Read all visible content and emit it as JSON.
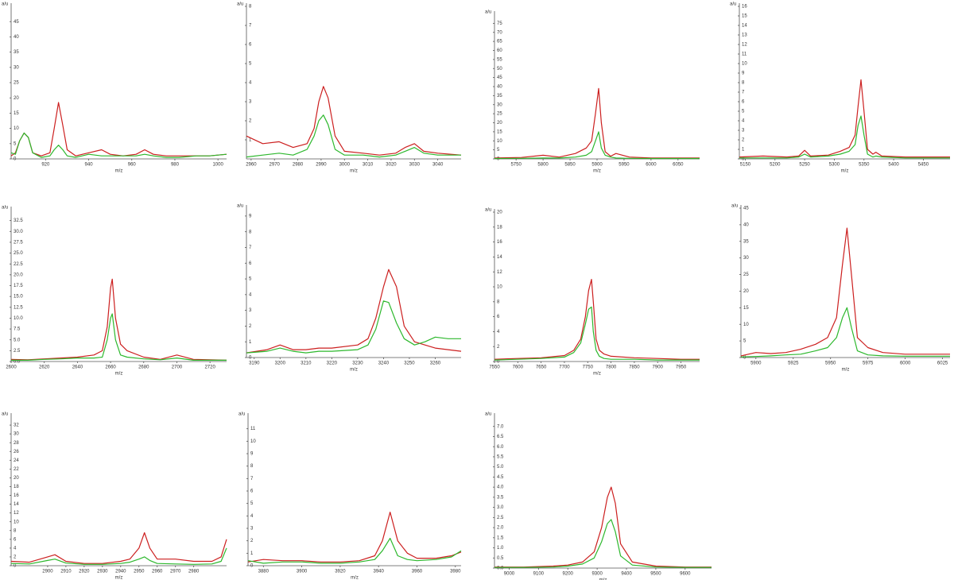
{
  "chart_data": [
    {
      "type": "line",
      "ylabel": "a/u",
      "xlabel": "m/z",
      "xlim": [
        904,
        1004
      ],
      "xticks": [
        920,
        940,
        960,
        980,
        1000
      ],
      "ylim": [
        0,
        50
      ],
      "yticks": [
        0,
        5,
        10,
        15,
        20,
        25,
        30,
        35,
        40,
        45
      ],
      "x": [
        904,
        906,
        908,
        910,
        912,
        914,
        918,
        922,
        924,
        926,
        928,
        930,
        934,
        940,
        946,
        950,
        956,
        962,
        966,
        970,
        976,
        982,
        990,
        996,
        1004
      ],
      "series": [
        {
          "color": "#cc1f1f",
          "values": [
            1,
            2,
            6,
            8.5,
            7,
            2,
            1,
            2,
            10,
            18.5,
            11,
            3,
            1,
            2,
            3,
            1.5,
            1,
            1.5,
            3,
            1.5,
            1,
            1,
            1,
            1,
            1.5
          ]
        },
        {
          "color": "#2db82d",
          "values": [
            2,
            1.5,
            6,
            8.5,
            7,
            2,
            0.5,
            1,
            3,
            4.5,
            3,
            1,
            0.5,
            1.5,
            1,
            1,
            1,
            1,
            1.5,
            1,
            0.5,
            0.5,
            1,
            1,
            1.5
          ]
        }
      ]
    },
    {
      "type": "line",
      "ylabel": "a/u",
      "xlabel": "m/z",
      "xlim": [
        2958,
        3050
      ],
      "xticks": [
        2960,
        2970,
        2980,
        2990,
        3000,
        3010,
        3020,
        3030,
        3040
      ],
      "ylim": [
        0,
        8
      ],
      "yticks": [
        1,
        2,
        3,
        4,
        5,
        6,
        7,
        8
      ],
      "x": [
        2958,
        2965,
        2972,
        2978,
        2984,
        2987,
        2989,
        2991,
        2993,
        2996,
        3000,
        3008,
        3015,
        3022,
        3026,
        3030,
        3034,
        3040,
        3050
      ],
      "series": [
        {
          "color": "#cc1f1f",
          "values": [
            1.2,
            0.8,
            0.9,
            0.6,
            0.8,
            1.6,
            3.0,
            3.8,
            3.2,
            1.2,
            0.4,
            0.3,
            0.2,
            0.3,
            0.6,
            0.8,
            0.4,
            0.3,
            0.2
          ]
        },
        {
          "color": "#2db82d",
          "values": [
            0.1,
            0.2,
            0.3,
            0.2,
            0.5,
            1.2,
            2.0,
            2.3,
            1.8,
            0.5,
            0.2,
            0.2,
            0.1,
            0.2,
            0.4,
            0.6,
            0.3,
            0.2,
            0.2
          ]
        }
      ]
    },
    {
      "type": "line",
      "ylabel": "a/u",
      "xlabel": "m/z",
      "xlim": [
        5710,
        6090
      ],
      "xticks": [
        5750,
        5800,
        5850,
        5900,
        5950,
        6000,
        6050
      ],
      "ylim": [
        0,
        80
      ],
      "yticks": [
        0,
        5,
        10,
        15,
        20,
        25,
        30,
        35,
        40,
        45,
        50,
        55,
        60,
        65,
        70,
        75
      ],
      "x": [
        5710,
        5760,
        5800,
        5830,
        5860,
        5880,
        5890,
        5897,
        5903,
        5908,
        5915,
        5925,
        5935,
        5960,
        6000,
        6050,
        6090
      ],
      "series": [
        {
          "color": "#cc1f1f",
          "values": [
            0.5,
            0.8,
            2,
            1,
            3,
            6,
            10,
            25,
            39,
            20,
            4,
            1.5,
            3,
            1,
            0.5,
            0.5,
            0.5
          ]
        },
        {
          "color": "#2db82d",
          "values": [
            0.2,
            0.3,
            0.5,
            0.5,
            1,
            2,
            4,
            10,
            15,
            6,
            2,
            1,
            0.5,
            0.3,
            0.2,
            0.2,
            0.2
          ]
        }
      ]
    },
    {
      "type": "line",
      "ylabel": "a/u",
      "xlabel": "m/z",
      "xlim": [
        5140,
        5495
      ],
      "xticks": [
        5150,
        5200,
        5250,
        5300,
        5350,
        5400,
        5450
      ],
      "ylim": [
        0,
        16
      ],
      "yticks": [
        0,
        1,
        2,
        3,
        4,
        5,
        6,
        7,
        8,
        9,
        10,
        11,
        12,
        13,
        14,
        15,
        16
      ],
      "x": [
        5140,
        5180,
        5220,
        5240,
        5250,
        5260,
        5290,
        5310,
        5325,
        5335,
        5340,
        5345,
        5350,
        5356,
        5365,
        5370,
        5380,
        5420,
        5460,
        5495
      ],
      "series": [
        {
          "color": "#cc1f1f",
          "values": [
            0.2,
            0.3,
            0.2,
            0.3,
            0.9,
            0.3,
            0.4,
            0.8,
            1.2,
            2.5,
            5.5,
            8.3,
            5,
            1,
            0.5,
            0.7,
            0.3,
            0.2,
            0.2,
            0.2
          ]
        },
        {
          "color": "#2db82d",
          "values": [
            0.1,
            0.1,
            0.1,
            0.2,
            0.5,
            0.2,
            0.3,
            0.5,
            0.8,
            1.5,
            3.5,
            4.5,
            2.5,
            0.5,
            0.2,
            0.3,
            0.2,
            0.1,
            0.1,
            0.1
          ]
        }
      ]
    },
    {
      "type": "line",
      "ylabel": "a/u",
      "xlabel": "m/z",
      "xlim": [
        2600,
        2730
      ],
      "xticks": [
        2600,
        2620,
        2640,
        2660,
        2680,
        2700,
        2720
      ],
      "ylim": [
        0,
        35
      ],
      "yticks": [
        {
          "value": 0,
          "label": "0.0"
        },
        2.5,
        {
          "value": 5,
          "label": "5.0"
        },
        7.5,
        {
          "value": 10,
          "label": "10.0"
        },
        12.5,
        {
          "value": 15,
          "label": "15.0"
        },
        17.5,
        {
          "value": 20,
          "label": "20.0"
        },
        22.5,
        {
          "value": 25,
          "label": "25.0"
        },
        27.5,
        {
          "value": 30,
          "label": "30.0"
        },
        32.5
      ],
      "x": [
        2600,
        2610,
        2620,
        2630,
        2640,
        2650,
        2655,
        2658,
        2660,
        2661,
        2663,
        2666,
        2670,
        2680,
        2690,
        2700,
        2710,
        2720,
        2730
      ],
      "series": [
        {
          "color": "#cc1f1f",
          "values": [
            0.5,
            0.4,
            0.6,
            0.8,
            1,
            1.5,
            2.5,
            8,
            17,
            19,
            10,
            4,
            2.5,
            1,
            0.5,
            1.5,
            0.5,
            0.4,
            0.3
          ]
        },
        {
          "color": "#2db82d",
          "values": [
            0.3,
            0.3,
            0.5,
            0.6,
            0.8,
            0.8,
            1,
            5,
            10,
            11,
            5,
            1.5,
            1,
            0.6,
            0.4,
            0.8,
            0.3,
            0.3,
            0.3
          ]
        }
      ]
    },
    {
      "type": "line",
      "ylabel": "a/u",
      "xlabel": "m/z",
      "xlim": [
        3187,
        3270
      ],
      "xticks": [
        3190,
        3200,
        3210,
        3220,
        3230,
        3240,
        3250,
        3260
      ],
      "ylim": [
        0,
        9.5
      ],
      "yticks": [
        0,
        1,
        2,
        3,
        4,
        5,
        6,
        7,
        8,
        9
      ],
      "x": [
        3187,
        3195,
        3200,
        3205,
        3210,
        3215,
        3220,
        3230,
        3234,
        3237,
        3240,
        3242,
        3245,
        3248,
        3252,
        3256,
        3260,
        3265,
        3270
      ],
      "series": [
        {
          "color": "#cc1f1f",
          "values": [
            0.3,
            0.5,
            0.8,
            0.5,
            0.5,
            0.6,
            0.6,
            0.8,
            1.2,
            2.5,
            4.5,
            5.6,
            4.5,
            2,
            1,
            0.8,
            0.6,
            0.5,
            0.4
          ]
        },
        {
          "color": "#2db82d",
          "values": [
            0.3,
            0.4,
            0.6,
            0.4,
            0.3,
            0.4,
            0.4,
            0.5,
            0.8,
            1.8,
            3.6,
            3.5,
            2.2,
            1.2,
            0.8,
            1,
            1.3,
            1.2,
            1.2
          ]
        }
      ]
    },
    {
      "type": "line",
      "ylabel": "a/u",
      "xlabel": "m/z",
      "xlim": [
        7550,
        7990
      ],
      "xticks": [
        7550,
        7600,
        7650,
        7700,
        7750,
        7800,
        7850,
        7900,
        7950
      ],
      "ylim": [
        0,
        20
      ],
      "yticks": [
        0,
        2,
        4,
        6,
        8,
        10,
        12,
        14,
        16,
        18,
        20
      ],
      "x": [
        7550,
        7600,
        7650,
        7700,
        7720,
        7735,
        7745,
        7752,
        7758,
        7762,
        7768,
        7775,
        7785,
        7800,
        7850,
        7900,
        7950,
        7990
      ],
      "series": [
        {
          "color": "#cc1f1f",
          "values": [
            0.3,
            0.4,
            0.5,
            0.8,
            1.5,
            3,
            6,
            9.5,
            11,
            8,
            3,
            1.5,
            1,
            0.7,
            0.5,
            0.4,
            0.3,
            0.3
          ]
        },
        {
          "color": "#2db82d",
          "values": [
            0.2,
            0.3,
            0.4,
            0.6,
            1.2,
            2.5,
            5,
            7,
            7.3,
            4,
            1.5,
            0.7,
            0.4,
            0.3,
            0.3,
            0.2,
            0.2,
            0.2
          ]
        }
      ]
    },
    {
      "type": "line",
      "ylabel": "a/u",
      "xlabel": "m/z",
      "xlim": [
        5890,
        6030
      ],
      "xticks": [
        5900,
        5925,
        5950,
        5975,
        6000,
        6025
      ],
      "ylim": [
        0,
        45
      ],
      "yticks": [
        0,
        5,
        10,
        15,
        20,
        25,
        30,
        35,
        40,
        45
      ],
      "x": [
        5890,
        5900,
        5910,
        5920,
        5930,
        5940,
        5948,
        5954,
        5958,
        5961,
        5964,
        5968,
        5975,
        5985,
        6000,
        6015,
        6030
      ],
      "series": [
        {
          "color": "#cc1f1f",
          "values": [
            0.5,
            1.5,
            1.2,
            1.5,
            2.5,
            4,
            6,
            12,
            28,
            39,
            25,
            6,
            3,
            1.5,
            1,
            1,
            1
          ]
        },
        {
          "color": "#2db82d",
          "values": [
            0.2,
            0.3,
            0.5,
            0.8,
            1,
            2,
            3,
            6,
            12,
            15,
            9,
            2,
            0.8,
            0.5,
            0.4,
            0.4,
            0.4
          ]
        }
      ]
    },
    {
      "type": "line",
      "ylabel": "a/u",
      "xlabel": "m/z",
      "xlim": [
        2880,
        2998
      ],
      "xticks": [
        2900,
        2910,
        2920,
        2930,
        2940,
        2950,
        2960,
        2970,
        2980
      ],
      "ylim": [
        0,
        34
      ],
      "yticks": [
        0,
        2,
        4,
        6,
        8,
        10,
        12,
        14,
        16,
        18,
        20,
        22,
        24,
        26,
        28,
        30,
        32
      ],
      "x": [
        2880,
        2890,
        2900,
        2904,
        2910,
        2920,
        2930,
        2940,
        2945,
        2950,
        2953,
        2956,
        2960,
        2970,
        2980,
        2990,
        2995,
        2998
      ],
      "series": [
        {
          "color": "#cc1f1f",
          "values": [
            1,
            0.8,
            2,
            2.5,
            1,
            0.5,
            0.5,
            1,
            1.5,
            4,
            7.5,
            4,
            1.5,
            1.5,
            1,
            1,
            2,
            6
          ]
        },
        {
          "color": "#2db82d",
          "values": [
            0.5,
            0.4,
            1.2,
            1.5,
            0.6,
            0.3,
            0.3,
            0.5,
            0.8,
            1.5,
            2,
            1.2,
            0.5,
            0.4,
            0.3,
            0.4,
            1,
            4
          ]
        }
      ]
    },
    {
      "type": "line",
      "ylabel": "a/u",
      "xlabel": "m/z",
      "xlim": [
        3872,
        3983
      ],
      "xticks": [
        3880,
        3900,
        3920,
        3940,
        3960,
        3980
      ],
      "ylim": [
        0,
        12
      ],
      "yticks": [
        0,
        1,
        2,
        3,
        4,
        5,
        6,
        7,
        8,
        9,
        10,
        11
      ],
      "x": [
        3872,
        3880,
        3890,
        3900,
        3910,
        3920,
        3930,
        3938,
        3942,
        3946,
        3950,
        3955,
        3960,
        3970,
        3978,
        3983
      ],
      "series": [
        {
          "color": "#cc1f1f",
          "values": [
            0.3,
            0.5,
            0.4,
            0.4,
            0.3,
            0.3,
            0.4,
            0.8,
            2,
            4.3,
            2,
            1,
            0.6,
            0.6,
            0.8,
            1.1
          ]
        },
        {
          "color": "#2db82d",
          "values": [
            0.4,
            0.2,
            0.3,
            0.3,
            0.2,
            0.2,
            0.3,
            0.5,
            1.2,
            2.2,
            0.8,
            0.5,
            0.4,
            0.5,
            0.7,
            1.2
          ]
        }
      ]
    },
    {
      "type": "line",
      "ylabel": "a/u",
      "xlabel": "m/z",
      "xlim": [
        8950,
        9690
      ],
      "xticks": [
        9000,
        9100,
        9200,
        9300,
        9400,
        9500,
        9600
      ],
      "ylim": [
        0,
        7.5
      ],
      "yticks": [
        {
          "value": 0,
          "label": "0.0"
        },
        0.5,
        {
          "value": 1,
          "label": "1.0"
        },
        1.5,
        {
          "value": 2,
          "label": "2.0"
        },
        2.5,
        {
          "value": 3,
          "label": "3.0"
        },
        3.5,
        {
          "value": 4,
          "label": "4.0"
        },
        4.5,
        {
          "value": 5,
          "label": "5.0"
        },
        5.5,
        {
          "value": 6,
          "label": "6.0"
        },
        6.5,
        {
          "value": 7,
          "label": "7.0"
        }
      ],
      "x": [
        8950,
        9050,
        9150,
        9200,
        9250,
        9290,
        9315,
        9335,
        9348,
        9362,
        9380,
        9420,
        9500,
        9600,
        9690
      ],
      "series": [
        {
          "color": "#cc1f1f",
          "values": [
            0.05,
            0.05,
            0.1,
            0.15,
            0.3,
            0.8,
            2,
            3.5,
            4,
            3.2,
            1.2,
            0.3,
            0.1,
            0.05,
            0.05
          ]
        },
        {
          "color": "#2db82d",
          "values": [
            0.03,
            0.03,
            0.05,
            0.1,
            0.2,
            0.5,
            1.3,
            2.2,
            2.4,
            1.8,
            0.6,
            0.15,
            0.05,
            0.03,
            0.03
          ]
        }
      ]
    }
  ]
}
